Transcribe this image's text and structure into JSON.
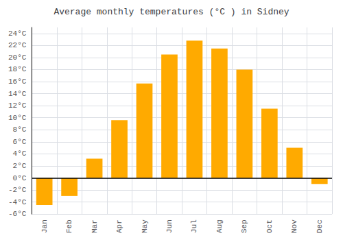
{
  "chart_data": {
    "type": "bar",
    "title": "Average monthly temperatures (°C ) in Sidney",
    "categories": [
      "Jan",
      "Feb",
      "Mar",
      "Apr",
      "May",
      "Jun",
      "Jul",
      "Aug",
      "Sep",
      "Oct",
      "Nov",
      "Dec"
    ],
    "values": [
      -4.5,
      -3.0,
      3.2,
      9.6,
      15.7,
      20.5,
      22.8,
      21.5,
      18.0,
      11.5,
      5.0,
      -1.0
    ],
    "color": "#FFAA00",
    "ylim": [
      -6,
      25
    ],
    "yticks": [
      {
        "value": -6,
        "label": "-6°C"
      },
      {
        "value": -4,
        "label": "-4°C"
      },
      {
        "value": -2,
        "label": "-2°C"
      },
      {
        "value": 0,
        "label": "0°C"
      },
      {
        "value": 2,
        "label": "2°C"
      },
      {
        "value": 4,
        "label": "4°C"
      },
      {
        "value": 6,
        "label": "6°C"
      },
      {
        "value": 8,
        "label": "8°C"
      },
      {
        "value": 10,
        "label": "10°C"
      },
      {
        "value": 12,
        "label": "12°C"
      },
      {
        "value": 14,
        "label": "14°C"
      },
      {
        "value": 16,
        "label": "16°C"
      },
      {
        "value": 18,
        "label": "18°C"
      },
      {
        "value": 20,
        "label": "20°C"
      },
      {
        "value": 22,
        "label": "22°C"
      },
      {
        "value": 24,
        "label": "24°C"
      }
    ],
    "grid": true
  }
}
